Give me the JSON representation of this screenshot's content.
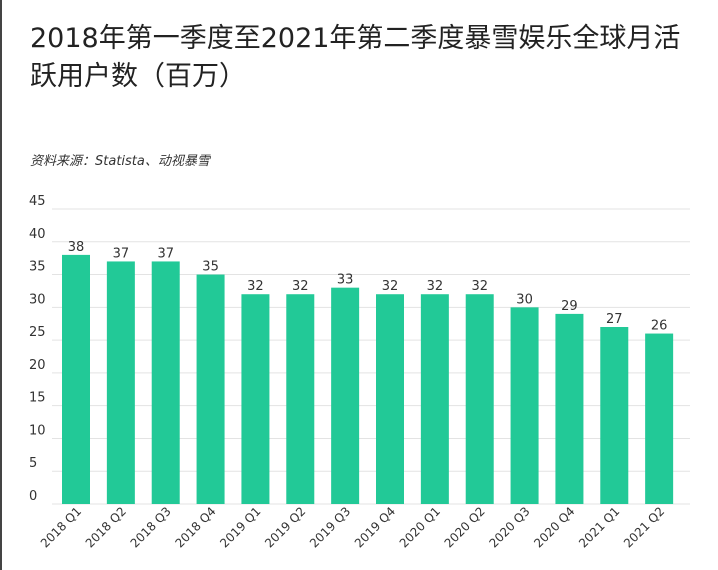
{
  "title": "2018年第一季度至2021年第二季度暴雪娱乐全球月活跃用户数（百万）",
  "source": "资料来源：Statista、动视暴雪",
  "chart_data": {
    "type": "bar",
    "title": "2018年第一季度至2021年第二季度暴雪娱乐全球月活跃用户数（百万）",
    "xlabel": "",
    "ylabel": "",
    "categories": [
      "2018 Q1",
      "2018 Q2",
      "2018 Q3",
      "2018 Q4",
      "2019 Q1",
      "2019 Q2",
      "2019 Q3",
      "2019 Q4",
      "2020 Q1",
      "2020 Q2",
      "2020 Q3",
      "2020 Q4",
      "2021 Q1",
      "2021 Q2"
    ],
    "values": [
      38,
      37,
      37,
      35,
      32,
      32,
      33,
      32,
      32,
      32,
      30,
      29,
      27,
      26
    ],
    "ylim": [
      0,
      45
    ],
    "yticks": [
      0,
      5,
      10,
      15,
      20,
      25,
      30,
      35,
      40,
      45
    ],
    "grid": true,
    "legend": "none",
    "bar_color": "#22c997",
    "grid_color": "#e3e3e3"
  }
}
